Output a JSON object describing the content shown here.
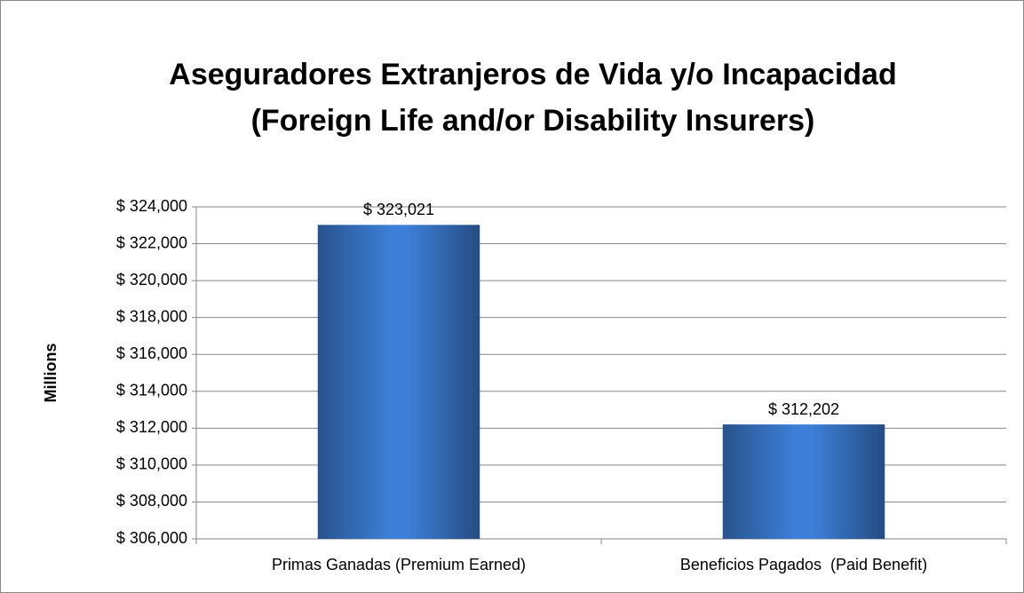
{
  "chart_data": {
    "type": "bar",
    "title": "Aseguradores Extranjeros de Vida y/o Incapacidad (Foreign Life and/or Disability Insurers)",
    "y_label": "Millions",
    "categories": [
      "Primas Ganadas (Premium Earned)",
      "Beneficios Pagados  (Paid Benefit)"
    ],
    "values": [
      323021,
      312202
    ],
    "value_labels": [
      "$ 323,021",
      "$ 312,202"
    ],
    "color": "#3d7fd8",
    "ylim": [
      306000,
      324000
    ],
    "yticks": [
      {
        "value": 306000,
        "label": "$ 306,000"
      },
      {
        "value": 308000,
        "label": "$ 308,000"
      },
      {
        "value": 310000,
        "label": "$ 310,000"
      },
      {
        "value": 312000,
        "label": "$ 312,000"
      },
      {
        "value": 314000,
        "label": "$ 314,000"
      },
      {
        "value": 316000,
        "label": "$ 316,000"
      },
      {
        "value": 318000,
        "label": "$ 318,000"
      },
      {
        "value": 320000,
        "label": "$ 320,000"
      },
      {
        "value": 322000,
        "label": "$ 322,000"
      },
      {
        "value": 324000,
        "label": "$ 324,000"
      }
    ],
    "grid": true
  }
}
